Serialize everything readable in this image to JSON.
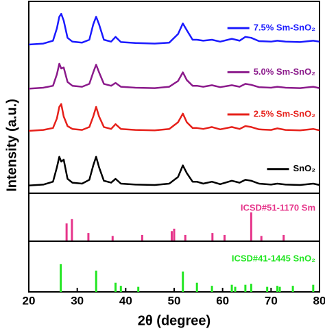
{
  "chart_data": [
    {
      "type": "line",
      "ylabel": "Intensity (a.u.)",
      "xlim": [
        20,
        80
      ],
      "ylim": [
        0,
        100
      ],
      "x": [
        20,
        23,
        25,
        25.8,
        26.3,
        26.7,
        27.2,
        28,
        29,
        31,
        32.5,
        33.3,
        33.9,
        34.5,
        35.5,
        37,
        37.9,
        39,
        42,
        46,
        49,
        50.8,
        51.8,
        52.6,
        53.8,
        54.7,
        56,
        57.8,
        59.5,
        61.9,
        63.5,
        64.7,
        65.9,
        67.5,
        70,
        71.3,
        73,
        76,
        78.7,
        80
      ],
      "series": [
        {
          "name": "7.5% Sm-SnO₂",
          "color": "#1a1aff",
          "values": [
            77.5,
            78,
            79.5,
            86,
            92,
            93.5,
            90,
            81,
            79,
            78.5,
            80,
            88,
            92,
            88,
            80,
            79,
            81.5,
            78.8,
            78.3,
            78,
            78.5,
            83,
            88.5,
            85,
            80,
            80,
            79.5,
            80,
            79,
            80.5,
            79.5,
            81.5,
            81,
            79.3,
            79,
            79.5,
            79,
            78.8,
            79.5,
            79
          ]
        },
        {
          "name": "5.0% Sm-SnO₂",
          "color": "#8b1a8b",
          "values": [
            54.5,
            55,
            56,
            62,
            67.5,
            65,
            65.5,
            58,
            56,
            55.5,
            57,
            63,
            67,
            63,
            57,
            56,
            57.5,
            55.5,
            55,
            54.8,
            55.5,
            58.5,
            63,
            59,
            56,
            56,
            55.5,
            56.3,
            55.3,
            56.3,
            55.5,
            57,
            56.5,
            55.3,
            55,
            55.5,
            55,
            54.8,
            55.5,
            54.8
          ]
        },
        {
          "name": "2.5% Sm-SnO₂",
          "color": "#e6201a",
          "values": [
            32.5,
            33,
            34,
            39,
            45,
            46.5,
            40,
            35,
            33.5,
            33,
            34.5,
            40,
            45,
            40,
            34.5,
            33.5,
            36,
            33.5,
            33,
            32.8,
            33.5,
            37,
            41.5,
            37,
            34,
            34,
            33.5,
            34.5,
            33.3,
            34.5,
            33.5,
            35,
            34.5,
            33.3,
            33,
            33.8,
            33,
            32.8,
            33.5,
            32.8
          ]
        },
        {
          "name": "SnO₂",
          "color": "#000000",
          "values": [
            4,
            4.5,
            6,
            13.5,
            19,
            16.5,
            17.5,
            7.5,
            5.5,
            5,
            7,
            14.5,
            19,
            13.5,
            6.5,
            5.5,
            7.5,
            5,
            4.5,
            4.3,
            5,
            8.5,
            14.5,
            10.5,
            6,
            6,
            5,
            6,
            4.7,
            6.5,
            5.5,
            7,
            6.5,
            5,
            4.5,
            5,
            4.5,
            4.3,
            5,
            4.3
          ]
        }
      ]
    },
    {
      "type": "stick",
      "label": "ICSD#51-1170 Sm",
      "color": "#e6348a",
      "xlim": [
        20,
        80
      ],
      "ylim": [
        0,
        100
      ],
      "x": [
        27.8,
        28.9,
        32.3,
        37.3,
        43.4,
        49.5,
        50,
        52.3,
        57.9,
        60.4,
        65.9,
        68,
        72.6
      ],
      "values": [
        37,
        46,
        17,
        11,
        13,
        21,
        26,
        13,
        17,
        13,
        60,
        11,
        13
      ]
    },
    {
      "type": "stick",
      "label": "ICSD#41-1445 SnO₂",
      "color": "#22e622",
      "xlim": [
        20,
        80
      ],
      "ylim": [
        0,
        100
      ],
      "xlabel": "2θ (degree)",
      "xticks": [
        20,
        30,
        40,
        50,
        60,
        70,
        80
      ],
      "x": [
        26.6,
        33.9,
        37.9,
        39,
        42.6,
        51.8,
        54.7,
        57.8,
        61.9,
        62.6,
        64.7,
        65.9,
        69.2,
        71.3,
        71.8,
        74.5,
        78.7
      ],
      "values": [
        55,
        42,
        18,
        12,
        10,
        40,
        18,
        12,
        14,
        10,
        14,
        16,
        10,
        12,
        10,
        12,
        14
      ]
    }
  ]
}
